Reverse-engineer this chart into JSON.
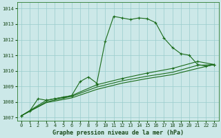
{
  "title": "Graphe pression niveau de la mer (hPa)",
  "bg_color": "#cce8e8",
  "grid_color": "#99cccc",
  "line_color": "#1a6b1a",
  "xlim": [
    -0.5,
    23.5
  ],
  "ylim": [
    1006.8,
    1014.4
  ],
  "yticks": [
    1007,
    1008,
    1009,
    1010,
    1011,
    1012,
    1013,
    1014
  ],
  "xticks": [
    0,
    1,
    2,
    3,
    4,
    5,
    6,
    7,
    8,
    9,
    10,
    11,
    12,
    13,
    14,
    15,
    16,
    17,
    18,
    19,
    20,
    21,
    22,
    23
  ],
  "series1_x": [
    0,
    1,
    2,
    3,
    4,
    5,
    6,
    7,
    8,
    9,
    10,
    11,
    12,
    13,
    14,
    15,
    16,
    17,
    18,
    19,
    20,
    21,
    22,
    23
  ],
  "series1_y": [
    1007.1,
    1007.4,
    1008.2,
    1008.1,
    1008.2,
    1008.3,
    1008.4,
    1009.3,
    1009.6,
    1009.2,
    1011.9,
    1013.5,
    1013.4,
    1013.3,
    1013.4,
    1013.35,
    1013.1,
    1012.1,
    1011.5,
    1011.1,
    1011.0,
    1010.4,
    1010.3,
    1010.4
  ],
  "series2_x": [
    0,
    3,
    6,
    9,
    12,
    15,
    18,
    21,
    23
  ],
  "series2_y": [
    1007.1,
    1008.1,
    1008.4,
    1009.1,
    1009.5,
    1009.85,
    1010.15,
    1010.6,
    1010.4
  ],
  "series3_x": [
    0,
    3,
    6,
    9,
    12,
    15,
    18,
    21,
    23
  ],
  "series3_y": [
    1007.1,
    1008.0,
    1008.35,
    1008.95,
    1009.35,
    1009.65,
    1009.9,
    1010.35,
    1010.4
  ],
  "series4_x": [
    0,
    3,
    6,
    9,
    12,
    15,
    18,
    21,
    23
  ],
  "series4_y": [
    1007.1,
    1007.95,
    1008.25,
    1008.8,
    1009.2,
    1009.5,
    1009.75,
    1010.15,
    1010.4
  ],
  "tick_fontsize": 5.0,
  "label_fontsize": 6.0
}
